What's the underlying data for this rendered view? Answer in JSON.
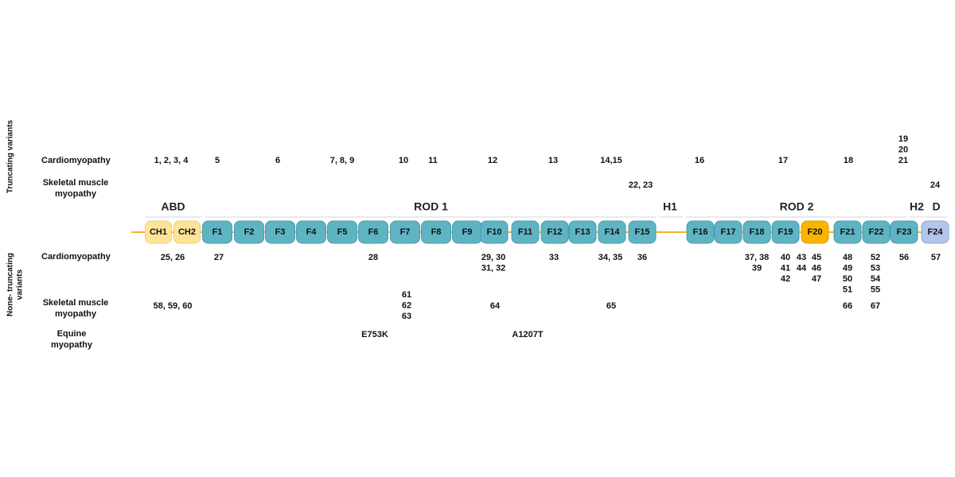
{
  "side_labels": [
    [
      "Truncating variants"
    ],
    [
      "None- truncating",
      "variants"
    ]
  ],
  "row_labels": [
    [
      "Cardiomyopathy"
    ],
    [
      "Skeletal muscle",
      "myopathy"
    ],
    [
      "Cardiomyopathy"
    ],
    [
      "Skeletal muscle",
      "myopathy"
    ],
    [
      "Equine",
      "myopathy"
    ]
  ],
  "regions": [
    "ABD",
    "ROD 1",
    "H1",
    "ROD 2",
    "H2",
    "D"
  ],
  "domains": [
    "CH1",
    "CH2",
    "F1",
    "F2",
    "F3",
    "F4",
    "F5",
    "F6",
    "F7",
    "F8",
    "F9",
    "F10",
    "F11",
    "F12",
    "F13",
    "F14",
    "F15",
    "F16",
    "F17",
    "F18",
    "F19",
    "F20",
    "F21",
    "F22",
    "F23",
    "F24"
  ],
  "rows": [
    [
      [
        "1, 2, 3, 4"
      ],
      [
        "5"
      ],
      [
        "6"
      ],
      [
        "7, 8, 9"
      ],
      [
        "10"
      ],
      [
        "11"
      ],
      [
        "12"
      ],
      [
        "13"
      ],
      [
        "14,15"
      ],
      [
        "16"
      ],
      [
        "17"
      ],
      [
        "18"
      ],
      [
        "19",
        "20",
        "21"
      ]
    ],
    [
      [
        "22, 23"
      ],
      [
        "24"
      ]
    ],
    [
      [
        "25, 26"
      ],
      [
        "27"
      ],
      [
        "28"
      ],
      [
        "29, 30",
        "31, 32"
      ],
      [
        "33"
      ],
      [
        "34, 35"
      ],
      [
        "36"
      ],
      [
        "37, 38",
        "39"
      ],
      [
        "40",
        "41",
        "42"
      ],
      [
        "43",
        "44"
      ],
      [
        "45",
        "46",
        "47"
      ],
      [
        "48",
        "49",
        "50",
        "51"
      ],
      [
        "52",
        "53",
        "54",
        "55"
      ],
      [
        "56"
      ],
      [
        "57"
      ]
    ],
    [
      [
        "58, 59, 60"
      ],
      [
        "61",
        "62",
        "63"
      ],
      [
        "64"
      ],
      [
        "65"
      ],
      [
        "66"
      ],
      [
        "67"
      ]
    ],
    [
      [
        "E753K"
      ],
      [
        "A1207T"
      ]
    ]
  ]
}
